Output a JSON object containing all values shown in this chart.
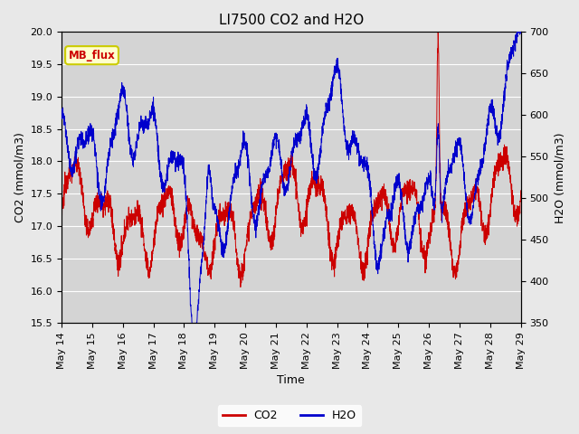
{
  "title": "LI7500 CO2 and H2O",
  "xlabel": "Time",
  "ylabel_left": "CO2 (mmol/m3)",
  "ylabel_right": "H2O (mmol/m3)",
  "co2_ylim": [
    15.5,
    20.0
  ],
  "h2o_ylim": [
    350,
    700
  ],
  "co2_yticks": [
    15.5,
    16.0,
    16.5,
    17.0,
    17.5,
    18.0,
    18.5,
    19.0,
    19.5,
    20.0
  ],
  "h2o_yticks": [
    350,
    400,
    450,
    500,
    550,
    600,
    650,
    700
  ],
  "xtick_labels": [
    "May 14",
    "May 15",
    "May 16",
    "May 17",
    "May 18",
    "May 19",
    "May 20",
    "May 21",
    "May 22",
    "May 23",
    "May 24",
    "May 25",
    "May 26",
    "May 27",
    "May 28",
    "May 29"
  ],
  "co2_color": "#cc0000",
  "h2o_color": "#0000cc",
  "fig_bg_color": "#e8e8e8",
  "plot_bg_color": "#d4d4d4",
  "annotation_text": "MB_flux",
  "annotation_bg": "#ffffcc",
  "annotation_border": "#cccc00",
  "legend_labels": [
    "CO2",
    "H2O"
  ],
  "title_fontsize": 11,
  "axis_fontsize": 9,
  "tick_fontsize": 8
}
